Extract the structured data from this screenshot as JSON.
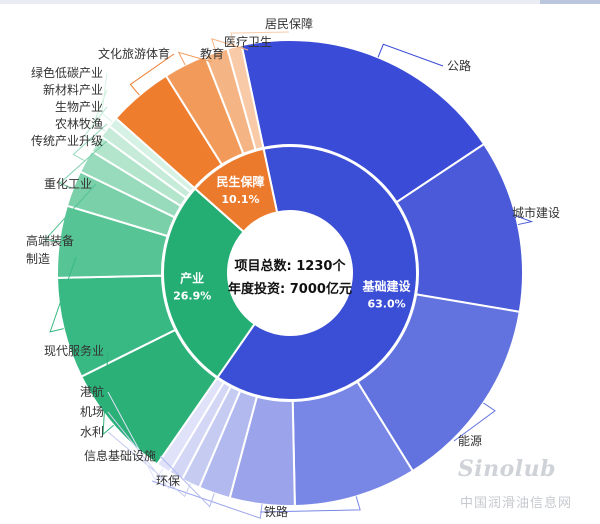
{
  "chart_data": {
    "type": "sunburst",
    "center": {
      "line1": "项目总数: 1230个",
      "line2": "年度投资: 7000亿元"
    },
    "inner": [
      {
        "label": "基础建设",
        "pct_label": "63.0%",
        "value": 63.0,
        "color": "#3b4fd6"
      },
      {
        "label": "产业",
        "pct_label": "26.9%",
        "value": 26.9,
        "color": "#25ae74"
      },
      {
        "label": "民生保障",
        "pct_label": "10.1%",
        "value": 10.1,
        "color": "#ec7a2d"
      }
    ],
    "outer": [
      {
        "label": "公路",
        "group": "基础建设",
        "value": 19.0,
        "color": "#3a4bd8"
      },
      {
        "label": "城市建设",
        "group": "基础建设",
        "value": 12.0,
        "color": "#4a5ad9"
      },
      {
        "label": "能源",
        "group": "基础建设",
        "value": 13.5,
        "color": "#6273df"
      },
      {
        "label": "铁路",
        "group": "基础建设",
        "value": 8.5,
        "color": "#7887e6"
      },
      {
        "label": "环保",
        "group": "基础建设",
        "value": 4.5,
        "color": "#9ba4ea"
      },
      {
        "label": "信息基础设施",
        "group": "基础建设",
        "value": 2.2,
        "color": "#b2b9ef"
      },
      {
        "label": "水利",
        "group": "基础建设",
        "value": 1.3,
        "color": "#c6cbf2"
      },
      {
        "label": "机场",
        "group": "基础建设",
        "value": 1.0,
        "color": "#d3d7f5"
      },
      {
        "label": "港航",
        "group": "基础建设",
        "value": 1.0,
        "color": "#dfe2f8"
      },
      {
        "label": "现代服务业",
        "group": "产业",
        "value": 8.0,
        "color": "#2bb178"
      },
      {
        "label": "高端装备制造",
        "group": "产业",
        "value": 7.0,
        "color": "#38b983"
      },
      {
        "label": "重化工业",
        "group": "产业",
        "value": 5.0,
        "color": "#56c495"
      },
      {
        "label": "传统产业升级",
        "group": "产业",
        "value": 2.5,
        "color": "#79d0a9"
      },
      {
        "label": "农林牧渔",
        "group": "产业",
        "value": 1.6,
        "color": "#97dbbc"
      },
      {
        "label": "生物产业",
        "group": "产业",
        "value": 1.2,
        "color": "#b3e5cd"
      },
      {
        "label": "新材料产业",
        "group": "产业",
        "value": 0.9,
        "color": "#c6ecd9"
      },
      {
        "label": "绿色低碳产业",
        "group": "产业",
        "value": 0.7,
        "color": "#d6f2e4"
      },
      {
        "label": "文化旅游体育",
        "group": "民生保障",
        "value": 4.5,
        "color": "#ef7d2e"
      },
      {
        "label": "教育",
        "group": "民生保障",
        "value": 3.0,
        "color": "#f29a5a"
      },
      {
        "label": "医疗卫生",
        "group": "民生保障",
        "value": 1.6,
        "color": "#f5b483"
      },
      {
        "label": "居民保障",
        "group": "民生保障",
        "value": 1.0,
        "color": "#f8caa8"
      }
    ]
  },
  "watermark": {
    "logo_text": "Sinolub",
    "cn_text": "中国润滑油信息网"
  }
}
